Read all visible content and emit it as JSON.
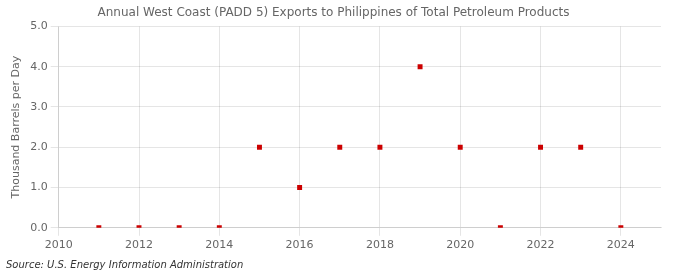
{
  "chart_data": {
    "type": "scatter",
    "title": "Annual West Coast (PADD 5) Exports to Philippines of Total Petroleum Products",
    "ylabel": "Thousand Barrels per Day",
    "annotations": [
      "Source: U.S. Energy Information Administration"
    ],
    "x": [
      2011,
      2012,
      2013,
      2014,
      2015,
      2016,
      2017,
      2018,
      2019,
      2020,
      2021,
      2022,
      2023,
      2024
    ],
    "values": [
      0.0,
      0.0,
      0.0,
      0.0,
      2.0,
      1.0,
      2.0,
      2.0,
      4.0,
      2.0,
      0.0,
      2.0,
      2.0,
      0.0
    ],
    "color": "#cc0000",
    "marker": "square",
    "xlim": [
      2010,
      2025
    ],
    "xticks": [
      2010,
      2012,
      2014,
      2016,
      2018,
      2020,
      2022,
      2024
    ],
    "ylim": [
      0.0,
      5.0
    ],
    "yticks": [
      {
        "value": 0.0,
        "label": "0.0"
      },
      {
        "value": 1.0,
        "label": "1.0"
      },
      {
        "value": 2.0,
        "label": "2.0"
      },
      {
        "value": 3.0,
        "label": "3.0"
      },
      {
        "value": 4.0,
        "label": "4.0"
      },
      {
        "value": 5.0,
        "label": "5.0"
      }
    ],
    "grid": true
  }
}
